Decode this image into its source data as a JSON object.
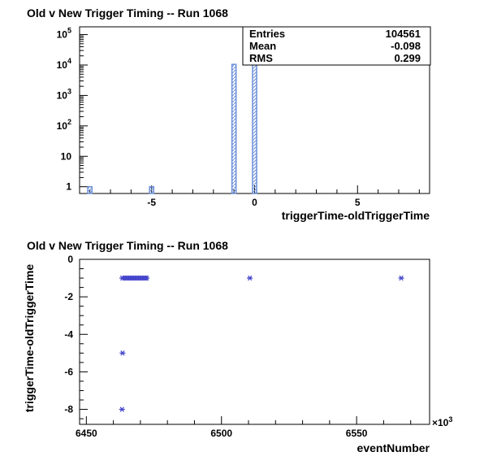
{
  "chart_data": [
    {
      "type": "bar",
      "title": "Old v New Trigger Timing -- Run 1068",
      "xlabel": "triggerTime-oldTriggerTime",
      "ylabel": "",
      "xlim": [
        -8.5,
        8.5
      ],
      "ylim": [
        0.6,
        180000
      ],
      "y_scale": "log",
      "x_ticks": [
        "-5",
        "0",
        "5"
      ],
      "y_ticks": [
        {
          "value": 1,
          "label": "1",
          "exp": ""
        },
        {
          "value": 10,
          "label": "10",
          "exp": ""
        },
        {
          "value": 100,
          "label": "10",
          "exp": "2"
        },
        {
          "value": 1000,
          "label": "10",
          "exp": "3"
        },
        {
          "value": 10000,
          "label": "10",
          "exp": "4"
        },
        {
          "value": 100000,
          "label": "10",
          "exp": "5"
        }
      ],
      "bins": [
        {
          "x": -8,
          "count": 1
        },
        {
          "x": -5,
          "count": 1
        },
        {
          "x": -1,
          "count": 10500
        },
        {
          "x": 0,
          "count": 94000
        }
      ],
      "bin_width": 0.2,
      "grid": false,
      "stats": {
        "rows": [
          {
            "label": "Entries",
            "value": "104561"
          },
          {
            "label": "Mean",
            "value": "-0.098"
          },
          {
            "label": "RMS",
            "value": "0.299"
          }
        ],
        "placement": "top-right"
      },
      "colors": {
        "bar": "#6a8fd8",
        "axis": "#000000"
      }
    },
    {
      "type": "scatter",
      "title": "Old v New Trigger Timing -- Run 1068",
      "xlabel": "eventNumber",
      "ylabel": "triggerTime-oldTriggerTime",
      "x_exponent_label": "×10",
      "x_exponent": "3",
      "xlim": [
        6447.5,
        6577
      ],
      "ylim": [
        -8.8,
        0
      ],
      "x_ticks": [
        "6450",
        "6500",
        "6550"
      ],
      "y_ticks": [
        "0",
        "-2",
        "-4",
        "-6",
        "-8"
      ],
      "grid": false,
      "points": [
        {
          "x": 6463.2,
          "y": -8
        },
        {
          "x": 6463.4,
          "y": -5
        },
        {
          "x": 6510.5,
          "y": -1
        },
        {
          "x": 6566.5,
          "y": -1
        }
      ],
      "dense_segment": {
        "x_start": 6463.3,
        "x_end": 6472.8,
        "y": -1
      },
      "marker": "star",
      "colors": {
        "marker": "#4444cc",
        "axis": "#000000"
      }
    }
  ]
}
